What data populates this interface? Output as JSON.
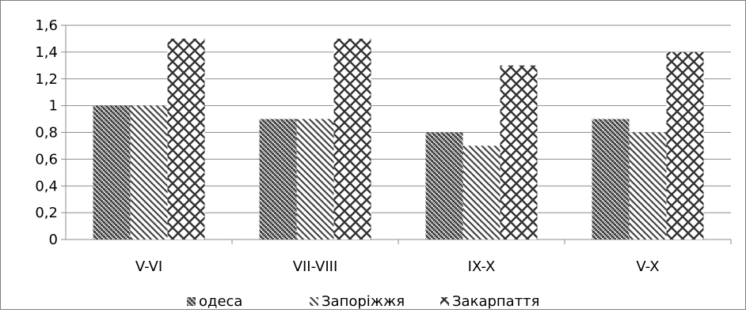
{
  "chart_data": {
    "type": "bar",
    "title": "",
    "xlabel": "",
    "ylabel": "",
    "categories": [
      "V-VI",
      "VII-VIII",
      "IX-X",
      "V-X"
    ],
    "ylim": [
      0,
      1.6
    ],
    "yticks": [
      "0",
      "0,2",
      "0,4",
      "0,6",
      "0,8",
      "1",
      "1,2",
      "1,4",
      "1,6"
    ],
    "grid": true,
    "legend_position": "bottom",
    "series": [
      {
        "name": "одеса",
        "values": [
          1.0,
          0.9,
          0.8,
          0.9
        ],
        "pattern": "checker"
      },
      {
        "name": "Запоріжжя",
        "values": [
          1.0,
          0.9,
          0.7,
          0.8
        ],
        "pattern": "diagonal"
      },
      {
        "name": "Закарпаття",
        "values": [
          1.5,
          1.5,
          1.3,
          1.4
        ],
        "pattern": "crosshatch"
      }
    ]
  }
}
